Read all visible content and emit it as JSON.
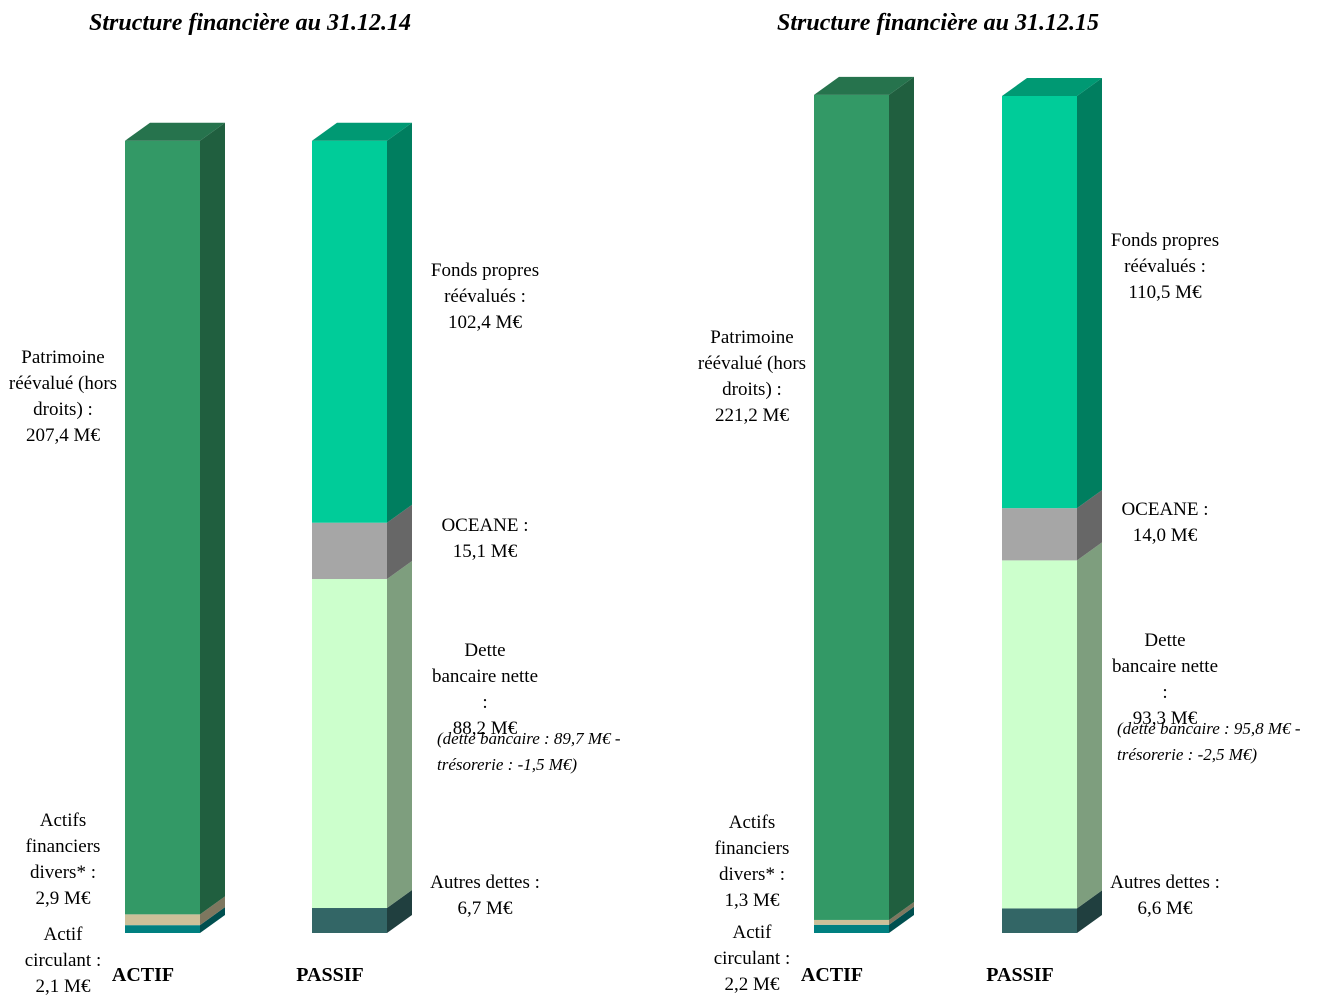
{
  "chart_data": [
    {
      "type": "bar",
      "stacked": true,
      "title": "Structure financière au 31.12.14",
      "categories": [
        "ACTIF",
        "PASSIF"
      ],
      "series": [
        {
          "name": "Actif circulant :",
          "color": "#008080",
          "values": [
            2.1,
            null
          ],
          "value_labels": [
            "2,1 M€",
            null
          ]
        },
        {
          "name": "Actifs financiers divers* :",
          "color": "#ccc099",
          "values": [
            2.9,
            null
          ],
          "value_labels": [
            "2,9 M€",
            null
          ]
        },
        {
          "name": "Patrimoine réévalué (hors droits) :",
          "color": "#339966",
          "values": [
            207.4,
            null
          ],
          "value_labels": [
            "207,4 M€",
            null
          ]
        },
        {
          "name": "Autres dettes :",
          "color": "#336666",
          "values": [
            null,
            6.7
          ],
          "value_labels": [
            null,
            "6,7 M€"
          ]
        },
        {
          "name": "Dette bancaire nette :",
          "color": "#ccffcc",
          "values": [
            null,
            88.2
          ],
          "value_labels": [
            null,
            "88,2 M€"
          ],
          "note": "(dette bancaire : 89,7 M€ - trésorerie : -1,5 M€)"
        },
        {
          "name": "OCEANE :",
          "color": "#a6a6a6",
          "values": [
            null,
            15.1
          ],
          "value_labels": [
            null,
            "15,1 M€"
          ]
        },
        {
          "name": "Fonds propres réévalués :",
          "color": "#00cc99",
          "values": [
            null,
            102.4
          ],
          "value_labels": [
            null,
            "102,4 M€"
          ]
        }
      ]
    },
    {
      "type": "bar",
      "stacked": true,
      "title": "Structure financière au 31.12.15",
      "categories": [
        "ACTIF",
        "PASSIF"
      ],
      "series": [
        {
          "name": "Actif circulant :",
          "color": "#008080",
          "values": [
            2.2,
            null
          ],
          "value_labels": [
            "2,2 M€",
            null
          ]
        },
        {
          "name": "Actifs financiers divers* :",
          "color": "#ccc099",
          "values": [
            1.3,
            null
          ],
          "value_labels": [
            "1,3 M€",
            null
          ]
        },
        {
          "name": "Patrimoine réévalué (hors droits) :",
          "color": "#339966",
          "values": [
            221.2,
            null
          ],
          "value_labels": [
            "221,2 M€",
            null
          ]
        },
        {
          "name": "Autres dettes :",
          "color": "#336666",
          "values": [
            null,
            6.6
          ],
          "value_labels": [
            null,
            "6,6 M€"
          ]
        },
        {
          "name": "Dette bancaire nette :",
          "color": "#ccffcc",
          "values": [
            null,
            93.3
          ],
          "value_labels": [
            null,
            "93,3 M€"
          ],
          "note": "(dette bancaire : 95,8 M€ - trésorerie : -2,5 M€)"
        },
        {
          "name": "OCEANE :",
          "color": "#a6a6a6",
          "values": [
            null,
            14.0
          ],
          "value_labels": [
            null,
            "14,0 M€"
          ]
        },
        {
          "name": "Fonds propres réévalués :",
          "color": "#00cc99",
          "values": [
            null,
            110.5
          ],
          "value_labels": [
            null,
            "110,5 M€"
          ]
        }
      ]
    }
  ]
}
